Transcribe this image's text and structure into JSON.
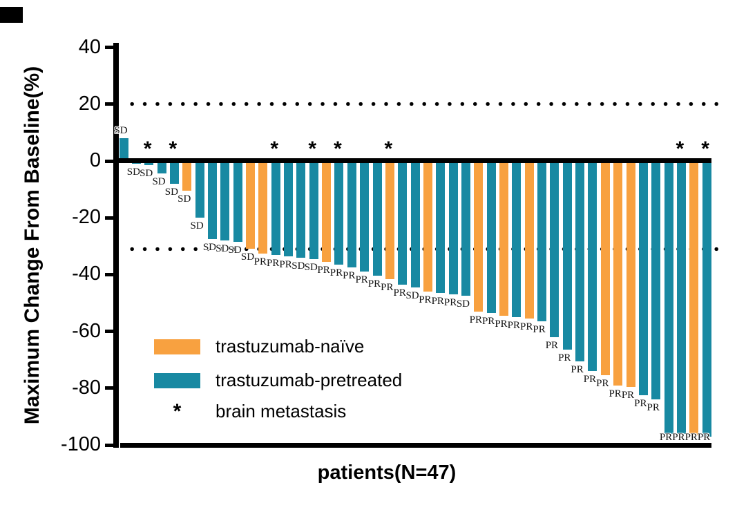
{
  "figure": {
    "y_axis_title": "Maximum Change From Baseline(%)",
    "x_axis_title": "patients(N=47)"
  },
  "legend": {
    "items": [
      {
        "key": "naive",
        "label": "trastuzumab-naïve",
        "color": "#F8A140"
      },
      {
        "key": "pretreated",
        "label": "trastuzumab-pretreated",
        "color": "#1889A2"
      },
      {
        "key": "brain_metastasis",
        "label": "brain metastasis",
        "symbol": "*"
      }
    ]
  },
  "chart_data": {
    "type": "bar",
    "subtype": "waterfall",
    "title": "",
    "xlabel": "patients(N=47)",
    "ylabel": "Maximum Change From Baseline(%)",
    "ylim": [
      -100,
      40
    ],
    "yticks": [
      40,
      20,
      0,
      -20,
      -40,
      -60,
      -80,
      -100
    ],
    "reference_lines": [
      20,
      -31
    ],
    "grid": false,
    "legend_position": "inside-lower-left",
    "colors": {
      "naive": "#F8A140",
      "pretreated": "#1889A2"
    },
    "marker_meaning": {
      "*": "brain metastasis"
    },
    "n_patients": 47,
    "patients": [
      {
        "v": 8,
        "g": "pretreated",
        "r": "SD"
      },
      {
        "v": -1,
        "g": "pretreated",
        "r": "SD"
      },
      {
        "v": -1.5,
        "g": "pretreated",
        "r": "SD",
        "bm": true
      },
      {
        "v": -4.5,
        "g": "pretreated",
        "r": "SD"
      },
      {
        "v": -8,
        "g": "pretreated",
        "r": "SD",
        "bm": true
      },
      {
        "v": -10.5,
        "g": "naive",
        "r": "SD"
      },
      {
        "v": -20,
        "g": "pretreated",
        "r": "SD"
      },
      {
        "v": -27.5,
        "g": "pretreated",
        "r": "SD"
      },
      {
        "v": -28,
        "g": "pretreated",
        "r": "SD"
      },
      {
        "v": -28.5,
        "g": "pretreated",
        "r": "SD"
      },
      {
        "v": -31,
        "g": "naive",
        "r": "SD"
      },
      {
        "v": -32.5,
        "g": "naive",
        "r": "PR"
      },
      {
        "v": -33,
        "g": "pretreated",
        "r": "PR",
        "bm": true
      },
      {
        "v": -33.5,
        "g": "pretreated",
        "r": "PR"
      },
      {
        "v": -34,
        "g": "pretreated",
        "r": "SD"
      },
      {
        "v": -34.5,
        "g": "pretreated",
        "r": "SD",
        "bm": true
      },
      {
        "v": -35.5,
        "g": "naive",
        "r": "PR"
      },
      {
        "v": -36.5,
        "g": "pretreated",
        "r": "PR",
        "bm": true
      },
      {
        "v": -37.5,
        "g": "pretreated",
        "r": "PR"
      },
      {
        "v": -39,
        "g": "pretreated",
        "r": "PR"
      },
      {
        "v": -40.5,
        "g": "pretreated",
        "r": "PR"
      },
      {
        "v": -41.5,
        "g": "naive",
        "r": "PR",
        "bm": true
      },
      {
        "v": -43.5,
        "g": "pretreated",
        "r": "PR"
      },
      {
        "v": -44.5,
        "g": "pretreated",
        "r": "SD"
      },
      {
        "v": -46,
        "g": "naive",
        "r": "PR"
      },
      {
        "v": -46.5,
        "g": "pretreated",
        "r": "PR"
      },
      {
        "v": -47,
        "g": "pretreated",
        "r": "PR"
      },
      {
        "v": -47.5,
        "g": "pretreated",
        "r": "SD"
      },
      {
        "v": -53,
        "g": "naive",
        "r": "PR"
      },
      {
        "v": -53.5,
        "g": "pretreated",
        "r": "PR"
      },
      {
        "v": -54.5,
        "g": "naive",
        "r": "PR"
      },
      {
        "v": -55,
        "g": "pretreated",
        "r": "PR"
      },
      {
        "v": -55.5,
        "g": "naive",
        "r": "PR"
      },
      {
        "v": -56.5,
        "g": "pretreated",
        "r": "PR"
      },
      {
        "v": -62,
        "g": "pretreated",
        "r": "PR"
      },
      {
        "v": -66.5,
        "g": "pretreated",
        "r": "PR"
      },
      {
        "v": -70.5,
        "g": "pretreated",
        "r": "PR"
      },
      {
        "v": -74,
        "g": "pretreated",
        "r": "PR"
      },
      {
        "v": -75.5,
        "g": "naive",
        "r": "PR"
      },
      {
        "v": -79,
        "g": "naive",
        "r": "PR"
      },
      {
        "v": -79.5,
        "g": "naive",
        "r": "PR"
      },
      {
        "v": -82.5,
        "g": "pretreated",
        "r": "PR"
      },
      {
        "v": -84,
        "g": "pretreated",
        "r": "PR"
      },
      {
        "v": -96,
        "g": "pretreated",
        "r": "PR"
      },
      {
        "v": -96,
        "g": "pretreated",
        "r": "PR",
        "bm": true
      },
      {
        "v": -96.5,
        "g": "naive",
        "r": "PR"
      },
      {
        "v": -97,
        "g": "pretreated",
        "r": "PR",
        "bm": true
      }
    ]
  }
}
